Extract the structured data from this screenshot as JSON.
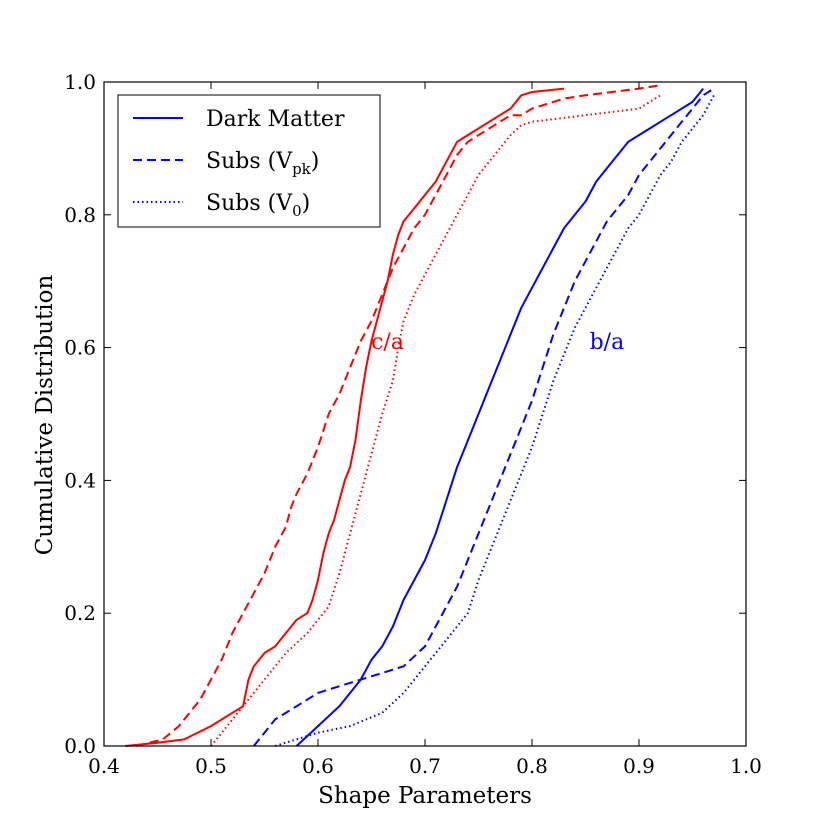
{
  "chart_data": {
    "type": "line",
    "title": "",
    "xlabel": "Shape Parameters",
    "ylabel": "Cumulative Distribution",
    "xlim": [
      0.4,
      1.0
    ],
    "ylim": [
      0.0,
      1.0
    ],
    "xticks": [
      "0.4",
      "0.5",
      "0.6",
      "0.7",
      "0.8",
      "0.9",
      "1.0"
    ],
    "yticks": [
      "0.0",
      "0.2",
      "0.4",
      "0.6",
      "0.8",
      "1.0"
    ],
    "grid": false,
    "legend_position": "top-left",
    "legend": [
      {
        "label": "Dark Matter",
        "style": "solid",
        "color": "#0000ff"
      },
      {
        "label": "Subs (V",
        "sub": "pk",
        "suffix": ")",
        "style": "dashed",
        "color": "#0000ff"
      },
      {
        "label": "Subs (V",
        "sub": "0",
        "suffix": ")",
        "style": "dotted",
        "color": "#0000ff"
      }
    ],
    "annotations": [
      {
        "text": "c/a",
        "x": 0.665,
        "y": 0.61,
        "color": "#ff0000"
      },
      {
        "text": "b/a",
        "x": 0.87,
        "y": 0.61,
        "color": "#0000ff"
      }
    ],
    "series": [
      {
        "name": "Dark Matter c/a",
        "group": "c/a",
        "style": "solid",
        "color": "#ff0000",
        "x": [
          0.42,
          0.45,
          0.475,
          0.5,
          0.52,
          0.53,
          0.535,
          0.54,
          0.55,
          0.56,
          0.57,
          0.575,
          0.58,
          0.59,
          0.595,
          0.6,
          0.605,
          0.61,
          0.615,
          0.62,
          0.625,
          0.63,
          0.635,
          0.64,
          0.645,
          0.65,
          0.655,
          0.66,
          0.665,
          0.67,
          0.675,
          0.68,
          0.69,
          0.7,
          0.71,
          0.72,
          0.73,
          0.74,
          0.75,
          0.76,
          0.77,
          0.78,
          0.79,
          0.8,
          0.83
        ],
        "y": [
          0.0,
          0.005,
          0.01,
          0.03,
          0.05,
          0.06,
          0.1,
          0.12,
          0.14,
          0.15,
          0.17,
          0.18,
          0.19,
          0.2,
          0.22,
          0.25,
          0.29,
          0.32,
          0.34,
          0.37,
          0.4,
          0.42,
          0.46,
          0.52,
          0.57,
          0.61,
          0.64,
          0.67,
          0.7,
          0.74,
          0.77,
          0.79,
          0.81,
          0.83,
          0.85,
          0.88,
          0.91,
          0.92,
          0.93,
          0.94,
          0.95,
          0.96,
          0.98,
          0.985,
          0.99
        ]
      },
      {
        "name": "Subs (Vpk) c/a",
        "group": "c/a",
        "style": "dashed",
        "color": "#ff0000",
        "x": [
          0.43,
          0.455,
          0.47,
          0.48,
          0.49,
          0.5,
          0.51,
          0.52,
          0.53,
          0.54,
          0.55,
          0.56,
          0.57,
          0.575,
          0.58,
          0.59,
          0.595,
          0.6,
          0.61,
          0.62,
          0.63,
          0.64,
          0.65,
          0.66,
          0.67,
          0.68,
          0.69,
          0.7,
          0.71,
          0.72,
          0.73,
          0.74,
          0.75,
          0.76,
          0.77,
          0.78,
          0.79,
          0.8,
          0.83,
          0.85,
          0.9,
          0.92
        ],
        "y": [
          0.0,
          0.01,
          0.03,
          0.05,
          0.07,
          0.1,
          0.13,
          0.17,
          0.2,
          0.23,
          0.26,
          0.3,
          0.33,
          0.36,
          0.38,
          0.41,
          0.43,
          0.45,
          0.5,
          0.53,
          0.57,
          0.61,
          0.64,
          0.68,
          0.72,
          0.75,
          0.78,
          0.8,
          0.83,
          0.86,
          0.89,
          0.91,
          0.92,
          0.93,
          0.94,
          0.95,
          0.95,
          0.96,
          0.975,
          0.98,
          0.99,
          0.995
        ]
      },
      {
        "name": "Subs (V0) c/a",
        "group": "c/a",
        "style": "dotted",
        "color": "#ff0000",
        "x": [
          0.5,
          0.53,
          0.55,
          0.57,
          0.59,
          0.61,
          0.62,
          0.63,
          0.64,
          0.65,
          0.66,
          0.67,
          0.675,
          0.68,
          0.69,
          0.7,
          0.71,
          0.72,
          0.73,
          0.74,
          0.75,
          0.76,
          0.77,
          0.78,
          0.79,
          0.8,
          0.85,
          0.9,
          0.92
        ],
        "y": [
          0.0,
          0.06,
          0.1,
          0.14,
          0.17,
          0.21,
          0.26,
          0.32,
          0.38,
          0.44,
          0.5,
          0.55,
          0.6,
          0.64,
          0.68,
          0.71,
          0.74,
          0.77,
          0.8,
          0.83,
          0.86,
          0.88,
          0.9,
          0.92,
          0.935,
          0.94,
          0.95,
          0.96,
          0.98
        ]
      },
      {
        "name": "Dark Matter b/a",
        "group": "b/a",
        "style": "solid",
        "color": "#0000ff",
        "x": [
          0.58,
          0.6,
          0.62,
          0.64,
          0.65,
          0.66,
          0.67,
          0.68,
          0.69,
          0.7,
          0.71,
          0.72,
          0.73,
          0.74,
          0.75,
          0.76,
          0.77,
          0.78,
          0.79,
          0.8,
          0.81,
          0.82,
          0.83,
          0.84,
          0.85,
          0.86,
          0.87,
          0.88,
          0.89,
          0.9,
          0.91,
          0.92,
          0.93,
          0.94,
          0.95,
          0.96
        ],
        "y": [
          0.0,
          0.03,
          0.06,
          0.1,
          0.13,
          0.15,
          0.18,
          0.22,
          0.25,
          0.28,
          0.32,
          0.37,
          0.42,
          0.46,
          0.5,
          0.54,
          0.58,
          0.62,
          0.66,
          0.69,
          0.72,
          0.75,
          0.78,
          0.8,
          0.82,
          0.85,
          0.87,
          0.89,
          0.91,
          0.92,
          0.93,
          0.94,
          0.95,
          0.96,
          0.97,
          0.99
        ]
      },
      {
        "name": "Subs (Vpk) b/a",
        "group": "b/a",
        "style": "dashed",
        "color": "#0000ff",
        "x": [
          0.54,
          0.56,
          0.58,
          0.6,
          0.62,
          0.64,
          0.66,
          0.68,
          0.7,
          0.71,
          0.72,
          0.73,
          0.74,
          0.75,
          0.76,
          0.77,
          0.78,
          0.79,
          0.8,
          0.81,
          0.82,
          0.83,
          0.84,
          0.85,
          0.86,
          0.87,
          0.88,
          0.89,
          0.9,
          0.91,
          0.92,
          0.93,
          0.94,
          0.95,
          0.96,
          0.97
        ],
        "y": [
          0.0,
          0.04,
          0.06,
          0.08,
          0.09,
          0.1,
          0.11,
          0.12,
          0.15,
          0.18,
          0.21,
          0.24,
          0.28,
          0.32,
          0.36,
          0.4,
          0.44,
          0.48,
          0.52,
          0.57,
          0.62,
          0.66,
          0.7,
          0.73,
          0.76,
          0.79,
          0.81,
          0.83,
          0.86,
          0.88,
          0.9,
          0.92,
          0.94,
          0.96,
          0.98,
          0.99
        ]
      },
      {
        "name": "Subs (V0) b/a",
        "group": "b/a",
        "style": "dotted",
        "color": "#0000ff",
        "x": [
          0.56,
          0.6,
          0.63,
          0.66,
          0.68,
          0.7,
          0.72,
          0.74,
          0.75,
          0.76,
          0.77,
          0.78,
          0.79,
          0.8,
          0.81,
          0.82,
          0.83,
          0.84,
          0.85,
          0.86,
          0.87,
          0.88,
          0.89,
          0.9,
          0.91,
          0.92,
          0.93,
          0.94,
          0.95,
          0.96,
          0.97
        ],
        "y": [
          0.0,
          0.02,
          0.03,
          0.05,
          0.08,
          0.12,
          0.16,
          0.2,
          0.25,
          0.29,
          0.33,
          0.37,
          0.41,
          0.45,
          0.5,
          0.55,
          0.59,
          0.63,
          0.66,
          0.69,
          0.72,
          0.75,
          0.78,
          0.8,
          0.83,
          0.86,
          0.88,
          0.91,
          0.93,
          0.95,
          0.98
        ]
      }
    ]
  }
}
